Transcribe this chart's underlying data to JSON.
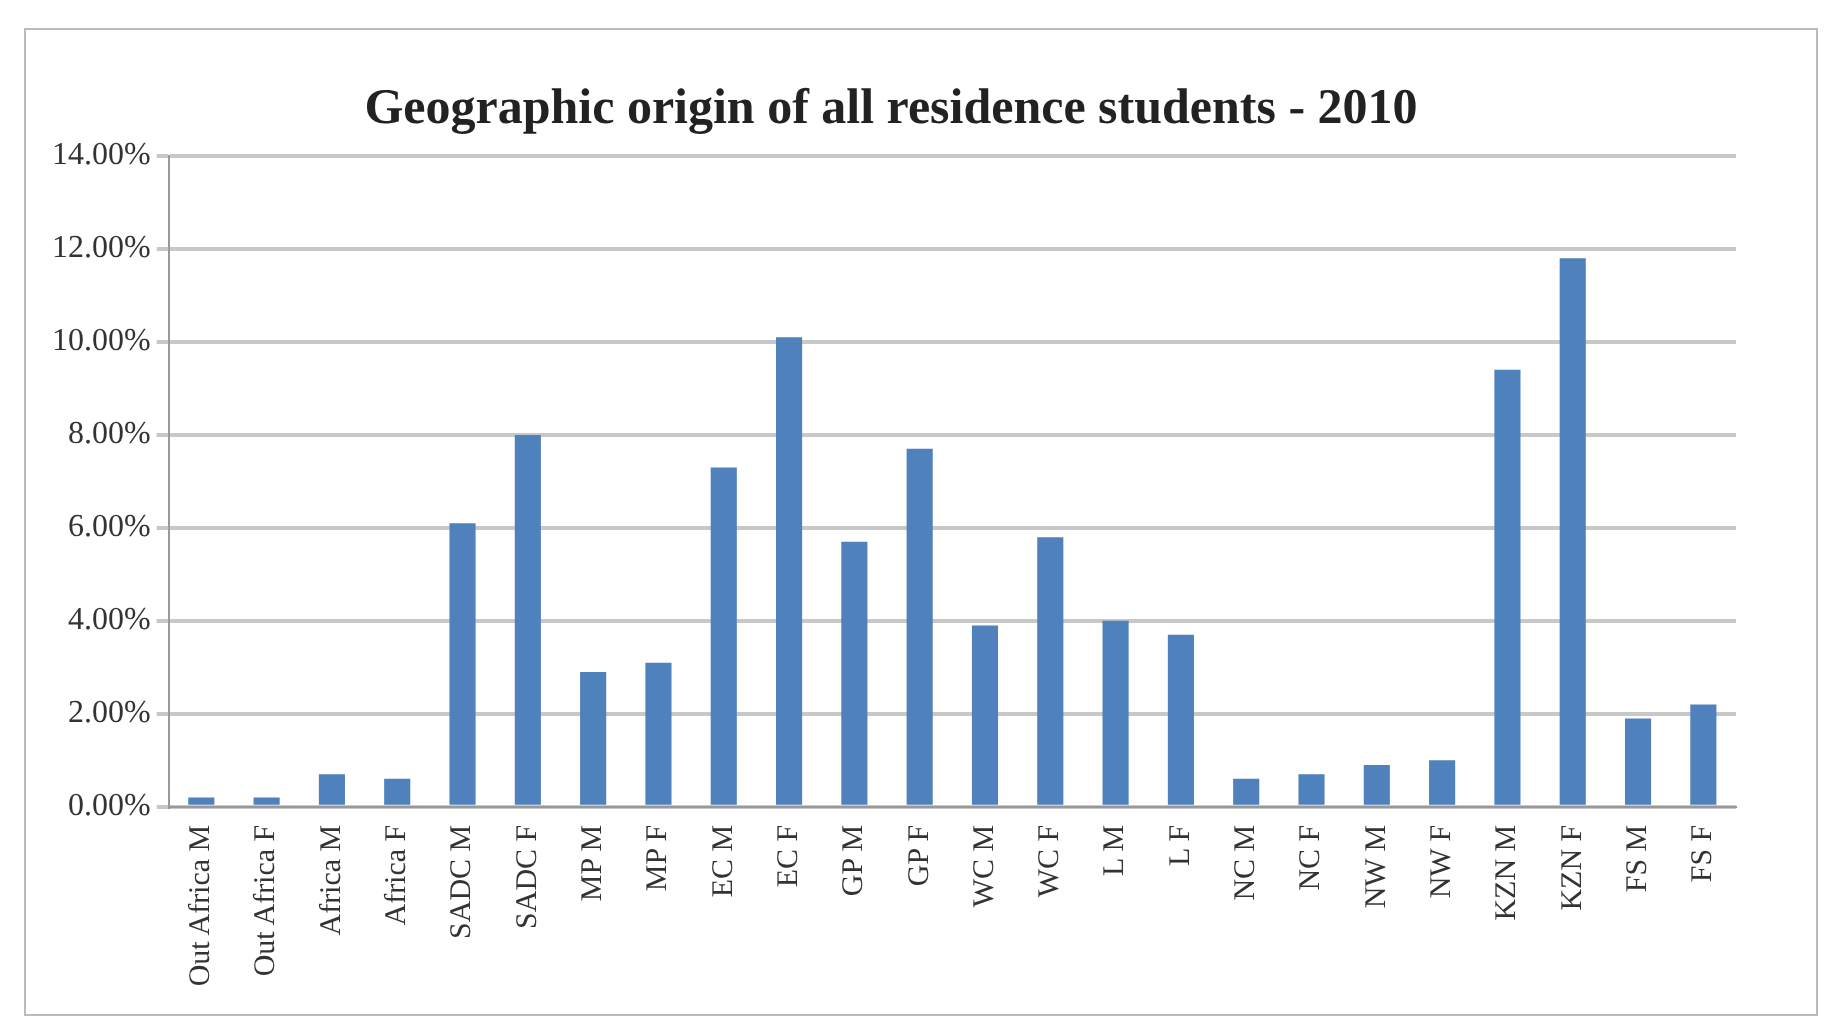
{
  "chart_data": {
    "type": "bar",
    "title": "Geographic origin of all residence students - 2010",
    "categories": [
      "Out Africa M",
      "Out Africa F",
      "Africa M",
      "Africa F",
      "SADC M",
      "SADC F",
      "MP M",
      "MP F",
      "EC M",
      "EC F",
      "GP M",
      "GP F",
      "WC M",
      "WC F",
      "L M",
      "L F",
      "NC M",
      "NC F",
      "NW M",
      "NW F",
      "KZN M",
      "KZN F",
      "FS M",
      "FS F"
    ],
    "values": [
      0.2,
      0.2,
      0.7,
      0.6,
      6.1,
      8.0,
      2.9,
      3.1,
      7.3,
      10.1,
      5.7,
      7.7,
      3.9,
      5.8,
      4.0,
      3.7,
      0.6,
      0.7,
      0.9,
      1.0,
      9.4,
      11.8,
      1.9,
      2.2
    ],
    "color": "#4f81bd",
    "ylim": [
      0,
      14
    ],
    "yticks": [
      {
        "value": 0,
        "label": "0.00%"
      },
      {
        "value": 2,
        "label": "2.00%"
      },
      {
        "value": 4,
        "label": "4.00%"
      },
      {
        "value": 6,
        "label": "6.00%"
      },
      {
        "value": 8,
        "label": "8.00%"
      },
      {
        "value": 10,
        "label": "10.00%"
      },
      {
        "value": 12,
        "label": "12.00%"
      },
      {
        "value": 14,
        "label": "14.00%"
      }
    ],
    "grid": "y",
    "legend": false
  }
}
